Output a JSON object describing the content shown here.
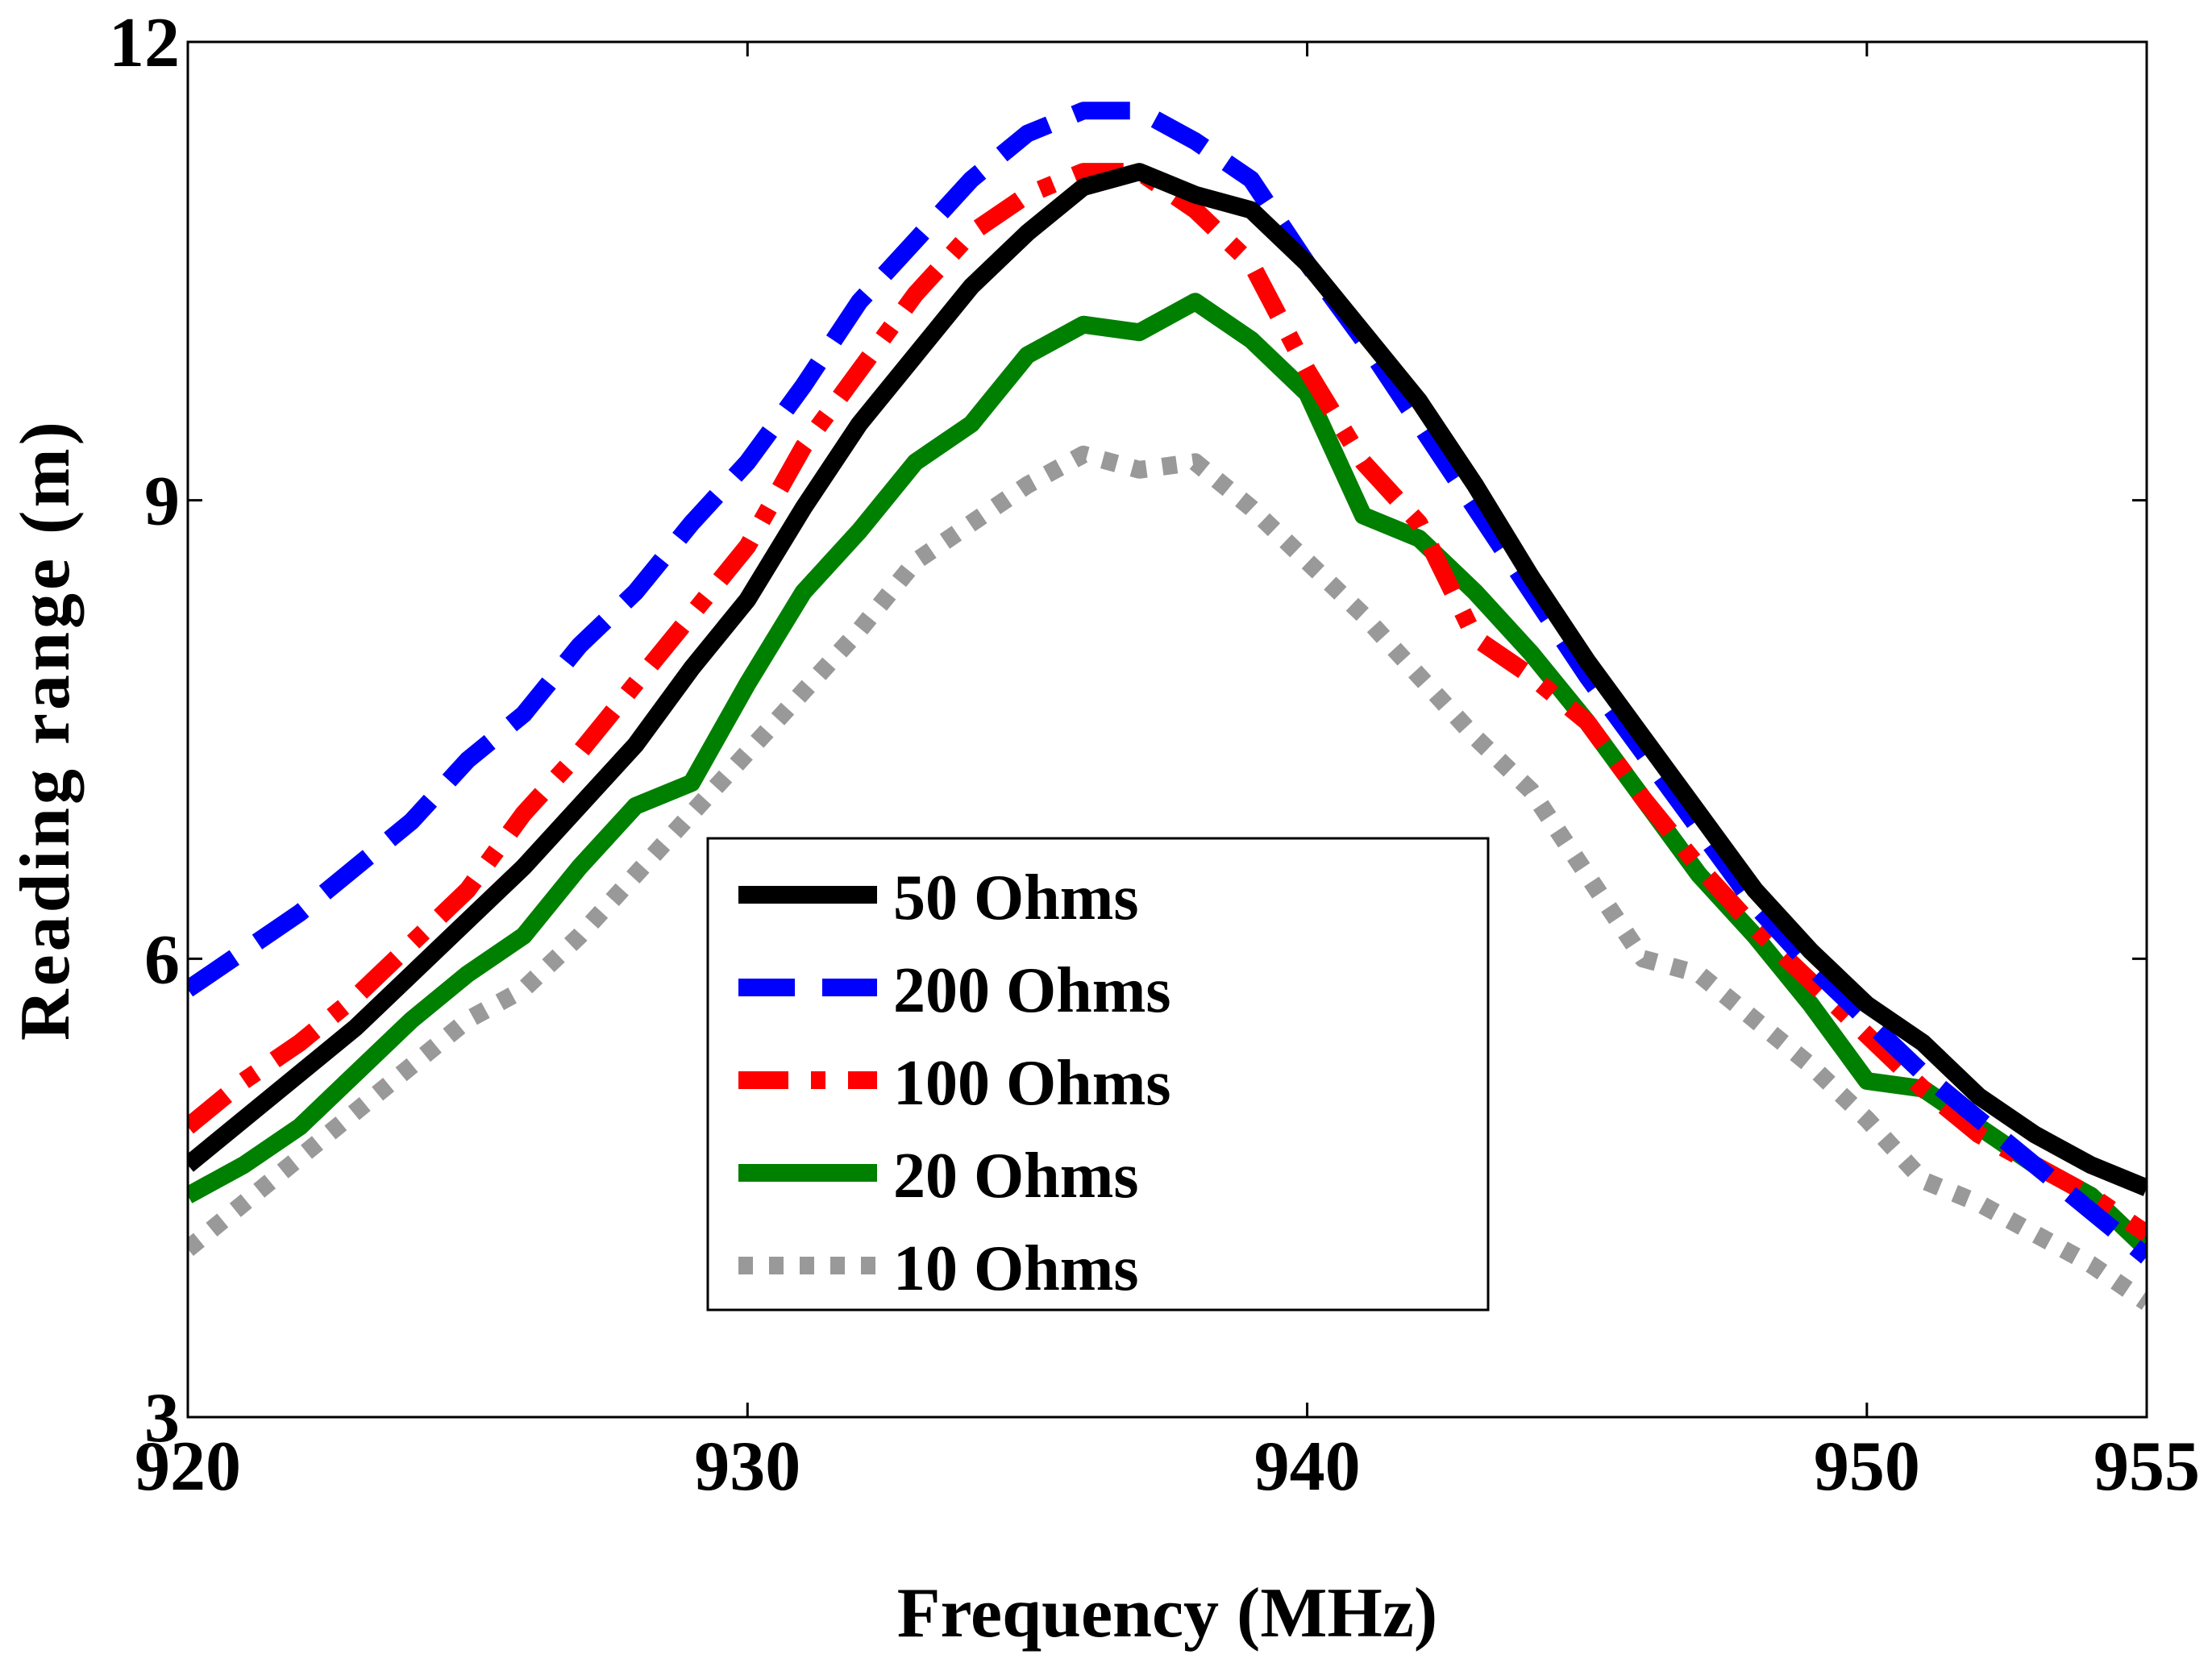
{
  "chart_data": {
    "type": "line",
    "title": "",
    "xlabel": "Frequency (MHz)",
    "ylabel": "Reading range (m)",
    "xlim": [
      920,
      955
    ],
    "ylim": [
      3,
      12
    ],
    "xticks": [
      920,
      930,
      940,
      950,
      955
    ],
    "yticks": [
      3,
      6,
      9,
      12
    ],
    "grid": false,
    "legend_position": "center-left",
    "x": [
      920,
      921,
      922,
      923,
      924,
      925,
      926,
      927,
      928,
      929,
      930,
      931,
      932,
      933,
      934,
      935,
      936,
      937,
      938,
      939,
      940,
      941,
      942,
      943,
      944,
      945,
      946,
      947,
      948,
      949,
      950,
      951,
      952,
      953,
      954,
      955
    ],
    "series": [
      {
        "name": "50 Ohms",
        "color": "#000000",
        "dash": "solid",
        "values": [
          4.65,
          4.95,
          5.25,
          5.55,
          5.9,
          6.25,
          6.6,
          7.0,
          7.4,
          7.9,
          8.35,
          8.95,
          9.5,
          9.95,
          10.4,
          10.75,
          11.05,
          11.15,
          11.0,
          10.9,
          10.55,
          10.1,
          9.65,
          9.1,
          8.5,
          7.95,
          7.45,
          6.95,
          6.45,
          6.05,
          5.7,
          5.45,
          5.1,
          4.85,
          4.65,
          4.5
        ],
        "stroke_width": 22
      },
      {
        "name": "200 Ohms",
        "color": "#0000ff",
        "dash": "dashed",
        "values": [
          5.8,
          6.05,
          6.3,
          6.6,
          6.9,
          7.3,
          7.6,
          8.05,
          8.4,
          8.85,
          9.25,
          9.75,
          10.3,
          10.7,
          11.1,
          11.4,
          11.55,
          11.55,
          11.35,
          11.1,
          10.55,
          10.05,
          9.5,
          8.95,
          8.4,
          7.85,
          7.35,
          6.85,
          6.35,
          5.95,
          5.6,
          5.25,
          4.95,
          4.65,
          4.35,
          4.05
        ],
        "stroke_width": 22
      },
      {
        "name": "100 Ohms",
        "color": "#ff0000",
        "dash": "dashdot",
        "values": [
          4.9,
          5.2,
          5.45,
          5.75,
          6.1,
          6.45,
          6.95,
          7.35,
          7.8,
          8.25,
          8.7,
          9.35,
          9.85,
          10.35,
          10.75,
          11.0,
          11.15,
          11.15,
          10.9,
          10.55,
          9.85,
          9.25,
          8.85,
          8.1,
          7.85,
          7.55,
          7.05,
          6.6,
          6.2,
          5.85,
          5.5,
          5.15,
          4.85,
          4.65,
          4.45,
          4.2
        ],
        "stroke_width": 22
      },
      {
        "name": "20 Ohms",
        "color": "#008000",
        "dash": "solid",
        "values": [
          4.45,
          4.65,
          4.9,
          5.25,
          5.6,
          5.9,
          6.15,
          6.6,
          7.0,
          7.15,
          7.8,
          8.4,
          8.8,
          9.25,
          9.5,
          9.95,
          10.15,
          10.1,
          10.3,
          10.05,
          9.7,
          8.9,
          8.75,
          8.4,
          8.0,
          7.55,
          7.05,
          6.55,
          6.15,
          5.7,
          5.2,
          5.15,
          4.9,
          4.65,
          4.45,
          4.1
        ],
        "stroke_width": 22
      },
      {
        "name": "10 Ohms",
        "color": "#999999",
        "dash": "dotted",
        "values": [
          4.1,
          4.4,
          4.7,
          5.0,
          5.3,
          5.6,
          5.8,
          6.15,
          6.55,
          6.95,
          7.35,
          7.75,
          8.15,
          8.6,
          8.85,
          9.1,
          9.3,
          9.2,
          9.25,
          8.95,
          8.6,
          8.25,
          7.85,
          7.45,
          7.1,
          6.55,
          6.0,
          5.9,
          5.6,
          5.3,
          4.95,
          4.55,
          4.4,
          4.2,
          4.0,
          3.75
        ],
        "stroke_width": 22
      }
    ]
  }
}
